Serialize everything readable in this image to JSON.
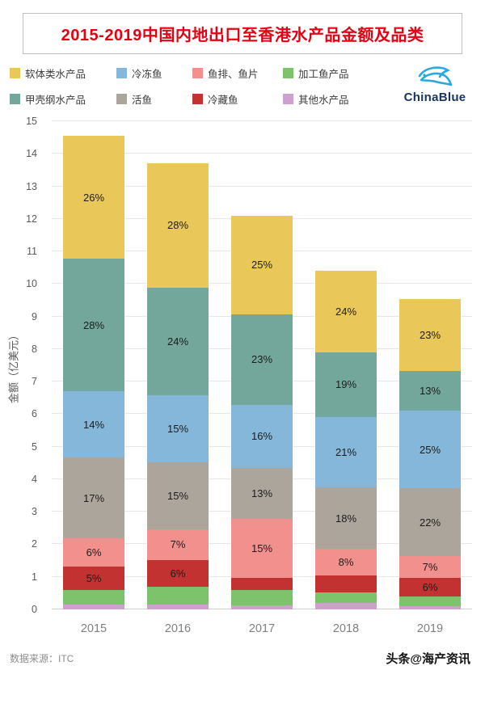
{
  "colors": {
    "title": "#e60012",
    "logo_blue": "#2aa9e0",
    "logo_navy": "#16355f"
  },
  "header": {
    "title": "2015-2019中国内地出口至香港水产品金额及品类"
  },
  "logo": {
    "text": "ChinaBlue"
  },
  "legend": [
    {
      "label": "软体类水产品",
      "color": "#e9c859"
    },
    {
      "label": "冷冻鱼",
      "color": "#85b7da"
    },
    {
      "label": "鱼排、鱼片",
      "color": "#f2908e"
    },
    {
      "label": "加工鱼产品",
      "color": "#7dc36b"
    },
    {
      "label": "甲壳纲水产品",
      "color": "#74a79c"
    },
    {
      "label": "活鱼",
      "color": "#aca59c"
    },
    {
      "label": "冷藏鱼",
      "color": "#c13230"
    },
    {
      "label": "其他水产品",
      "color": "#cda0ce"
    }
  ],
  "chart_data": {
    "type": "bar",
    "stacked": true,
    "title": "2015-2019中国内地出口至香港水产品金额及品类",
    "xlabel": "",
    "ylabel": "金额（亿美元）",
    "ylim": [
      0,
      15
    ],
    "yticks": [
      0,
      1,
      2,
      3,
      4,
      5,
      6,
      7,
      8,
      9,
      10,
      11,
      12,
      13,
      14,
      15
    ],
    "grid": true,
    "legend_position": "top",
    "categories": [
      "2015",
      "2016",
      "2017",
      "2018",
      "2019"
    ],
    "totals": [
      14.55,
      13.7,
      12.1,
      10.4,
      9.5
    ],
    "series": [
      {
        "name": "其他水产品",
        "color": "#cda0ce",
        "values": [
          0.15,
          0.14,
          0.12,
          0.21,
          0.1
        ],
        "labels": [
          "",
          "",
          "",
          "",
          ""
        ]
      },
      {
        "name": "加工鱼产品",
        "color": "#7dc36b",
        "values": [
          0.44,
          0.55,
          0.48,
          0.31,
          0.29
        ],
        "labels": [
          "",
          "",
          "",
          "",
          ""
        ]
      },
      {
        "name": "冷藏鱼",
        "color": "#c13230",
        "values": [
          0.73,
          0.82,
          0.36,
          0.52,
          0.57
        ],
        "labels": [
          "5%",
          "6%",
          "",
          "",
          "6%"
        ]
      },
      {
        "name": "鱼排、鱼片",
        "color": "#f2908e",
        "values": [
          0.87,
          0.96,
          1.82,
          0.83,
          0.67
        ],
        "labels": [
          "6%",
          "7%",
          "15%",
          "8%",
          "7%"
        ]
      },
      {
        "name": "活鱼",
        "color": "#aca59c",
        "values": [
          2.47,
          2.06,
          1.57,
          1.87,
          2.09
        ],
        "labels": [
          "17%",
          "15%",
          "13%",
          "18%",
          "22%"
        ]
      },
      {
        "name": "冷冻鱼",
        "color": "#85b7da",
        "values": [
          2.04,
          2.06,
          1.94,
          2.18,
          2.38
        ],
        "labels": [
          "14%",
          "15%",
          "16%",
          "21%",
          "25%"
        ]
      },
      {
        "name": "甲壳纲水产品",
        "color": "#74a79c",
        "values": [
          4.07,
          3.29,
          2.78,
          1.98,
          1.24
        ],
        "labels": [
          "28%",
          "24%",
          "23%",
          "19%",
          "13%"
        ]
      },
      {
        "name": "软体类水产品",
        "color": "#e9c859",
        "values": [
          3.78,
          3.84,
          3.03,
          2.5,
          2.19
        ],
        "labels": [
          "26%",
          "28%",
          "25%",
          "24%",
          "23%"
        ]
      }
    ]
  },
  "footer": {
    "source": "数据来源：ITC",
    "watermark": "头条@海产资讯"
  }
}
